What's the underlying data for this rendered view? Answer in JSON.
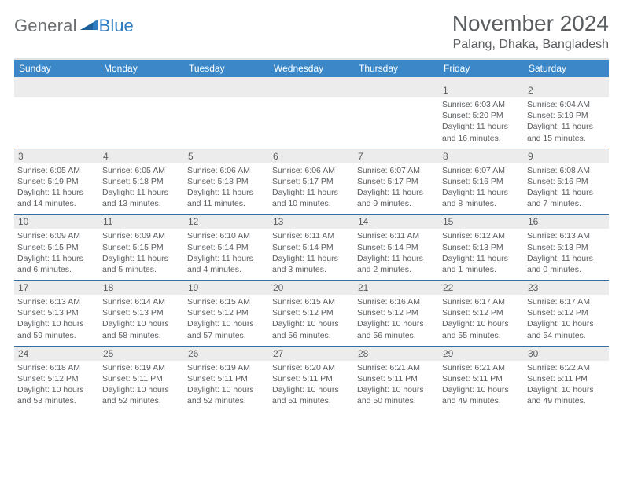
{
  "logo": {
    "text1": "General",
    "text2": "Blue",
    "accent_color": "#2d7cc1",
    "gray_color": "#6b6f72"
  },
  "title": "November 2024",
  "location": "Palang, Dhaka, Bangladesh",
  "header_bg": "#3b87c8",
  "band_bg": "#ececec",
  "rule_color": "#2f6fa6",
  "text_color": "#5a5e61",
  "weekdays": [
    "Sunday",
    "Monday",
    "Tuesday",
    "Wednesday",
    "Thursday",
    "Friday",
    "Saturday"
  ],
  "weeks": [
    [
      {
        "empty": true
      },
      {
        "empty": true
      },
      {
        "empty": true
      },
      {
        "empty": true
      },
      {
        "empty": true
      },
      {
        "num": "1",
        "sunrise": "6:03 AM",
        "sunset": "5:20 PM",
        "daylight_h": "11",
        "daylight_m": "16"
      },
      {
        "num": "2",
        "sunrise": "6:04 AM",
        "sunset": "5:19 PM",
        "daylight_h": "11",
        "daylight_m": "15"
      }
    ],
    [
      {
        "num": "3",
        "sunrise": "6:05 AM",
        "sunset": "5:19 PM",
        "daylight_h": "11",
        "daylight_m": "14"
      },
      {
        "num": "4",
        "sunrise": "6:05 AM",
        "sunset": "5:18 PM",
        "daylight_h": "11",
        "daylight_m": "13"
      },
      {
        "num": "5",
        "sunrise": "6:06 AM",
        "sunset": "5:18 PM",
        "daylight_h": "11",
        "daylight_m": "11"
      },
      {
        "num": "6",
        "sunrise": "6:06 AM",
        "sunset": "5:17 PM",
        "daylight_h": "11",
        "daylight_m": "10"
      },
      {
        "num": "7",
        "sunrise": "6:07 AM",
        "sunset": "5:17 PM",
        "daylight_h": "11",
        "daylight_m": "9"
      },
      {
        "num": "8",
        "sunrise": "6:07 AM",
        "sunset": "5:16 PM",
        "daylight_h": "11",
        "daylight_m": "8"
      },
      {
        "num": "9",
        "sunrise": "6:08 AM",
        "sunset": "5:16 PM",
        "daylight_h": "11",
        "daylight_m": "7"
      }
    ],
    [
      {
        "num": "10",
        "sunrise": "6:09 AM",
        "sunset": "5:15 PM",
        "daylight_h": "11",
        "daylight_m": "6"
      },
      {
        "num": "11",
        "sunrise": "6:09 AM",
        "sunset": "5:15 PM",
        "daylight_h": "11",
        "daylight_m": "5"
      },
      {
        "num": "12",
        "sunrise": "6:10 AM",
        "sunset": "5:14 PM",
        "daylight_h": "11",
        "daylight_m": "4"
      },
      {
        "num": "13",
        "sunrise": "6:11 AM",
        "sunset": "5:14 PM",
        "daylight_h": "11",
        "daylight_m": "3"
      },
      {
        "num": "14",
        "sunrise": "6:11 AM",
        "sunset": "5:14 PM",
        "daylight_h": "11",
        "daylight_m": "2"
      },
      {
        "num": "15",
        "sunrise": "6:12 AM",
        "sunset": "5:13 PM",
        "daylight_h": "11",
        "daylight_m": "1"
      },
      {
        "num": "16",
        "sunrise": "6:13 AM",
        "sunset": "5:13 PM",
        "daylight_h": "11",
        "daylight_m": "0"
      }
    ],
    [
      {
        "num": "17",
        "sunrise": "6:13 AM",
        "sunset": "5:13 PM",
        "daylight_h": "10",
        "daylight_m": "59"
      },
      {
        "num": "18",
        "sunrise": "6:14 AM",
        "sunset": "5:13 PM",
        "daylight_h": "10",
        "daylight_m": "58"
      },
      {
        "num": "19",
        "sunrise": "6:15 AM",
        "sunset": "5:12 PM",
        "daylight_h": "10",
        "daylight_m": "57"
      },
      {
        "num": "20",
        "sunrise": "6:15 AM",
        "sunset": "5:12 PM",
        "daylight_h": "10",
        "daylight_m": "56"
      },
      {
        "num": "21",
        "sunrise": "6:16 AM",
        "sunset": "5:12 PM",
        "daylight_h": "10",
        "daylight_m": "56"
      },
      {
        "num": "22",
        "sunrise": "6:17 AM",
        "sunset": "5:12 PM",
        "daylight_h": "10",
        "daylight_m": "55"
      },
      {
        "num": "23",
        "sunrise": "6:17 AM",
        "sunset": "5:12 PM",
        "daylight_h": "10",
        "daylight_m": "54"
      }
    ],
    [
      {
        "num": "24",
        "sunrise": "6:18 AM",
        "sunset": "5:12 PM",
        "daylight_h": "10",
        "daylight_m": "53"
      },
      {
        "num": "25",
        "sunrise": "6:19 AM",
        "sunset": "5:11 PM",
        "daylight_h": "10",
        "daylight_m": "52"
      },
      {
        "num": "26",
        "sunrise": "6:19 AM",
        "sunset": "5:11 PM",
        "daylight_h": "10",
        "daylight_m": "52"
      },
      {
        "num": "27",
        "sunrise": "6:20 AM",
        "sunset": "5:11 PM",
        "daylight_h": "10",
        "daylight_m": "51"
      },
      {
        "num": "28",
        "sunrise": "6:21 AM",
        "sunset": "5:11 PM",
        "daylight_h": "10",
        "daylight_m": "50"
      },
      {
        "num": "29",
        "sunrise": "6:21 AM",
        "sunset": "5:11 PM",
        "daylight_h": "10",
        "daylight_m": "49"
      },
      {
        "num": "30",
        "sunrise": "6:22 AM",
        "sunset": "5:11 PM",
        "daylight_h": "10",
        "daylight_m": "49"
      }
    ]
  ],
  "labels": {
    "sunrise": "Sunrise:",
    "sunset": "Sunset:",
    "daylight1": "Daylight:",
    "hours": "hours",
    "and": "and",
    "minutes": "minutes."
  }
}
